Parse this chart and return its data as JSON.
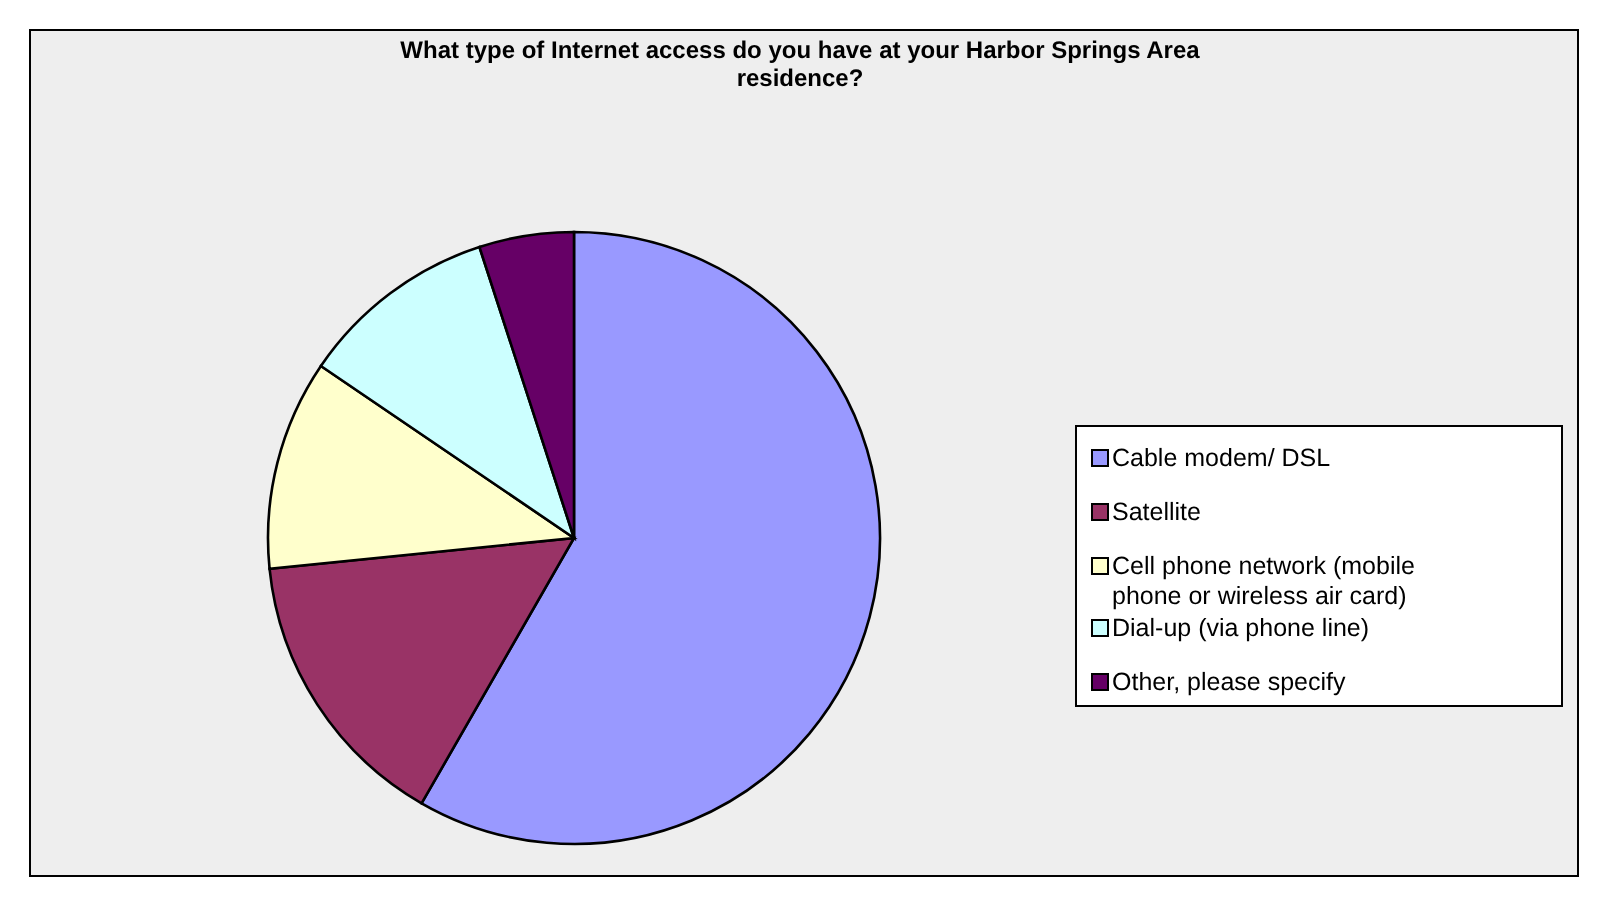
{
  "chart_data": {
    "type": "pie",
    "title": "What type of Internet access do you have at your Harbor Springs Area residence?",
    "categories": [
      "Cable modem/ DSL",
      "Satellite",
      "Cell phone network (mobile phone or wireless air card)",
      "Dial-up (via phone line)",
      "Other, please specify"
    ],
    "values": [
      58.3,
      15.1,
      11.1,
      10.5,
      5.0
    ],
    "colors": [
      "#9999ff",
      "#993366",
      "#ffffcc",
      "#ccffff",
      "#660066"
    ],
    "legend": "right"
  }
}
